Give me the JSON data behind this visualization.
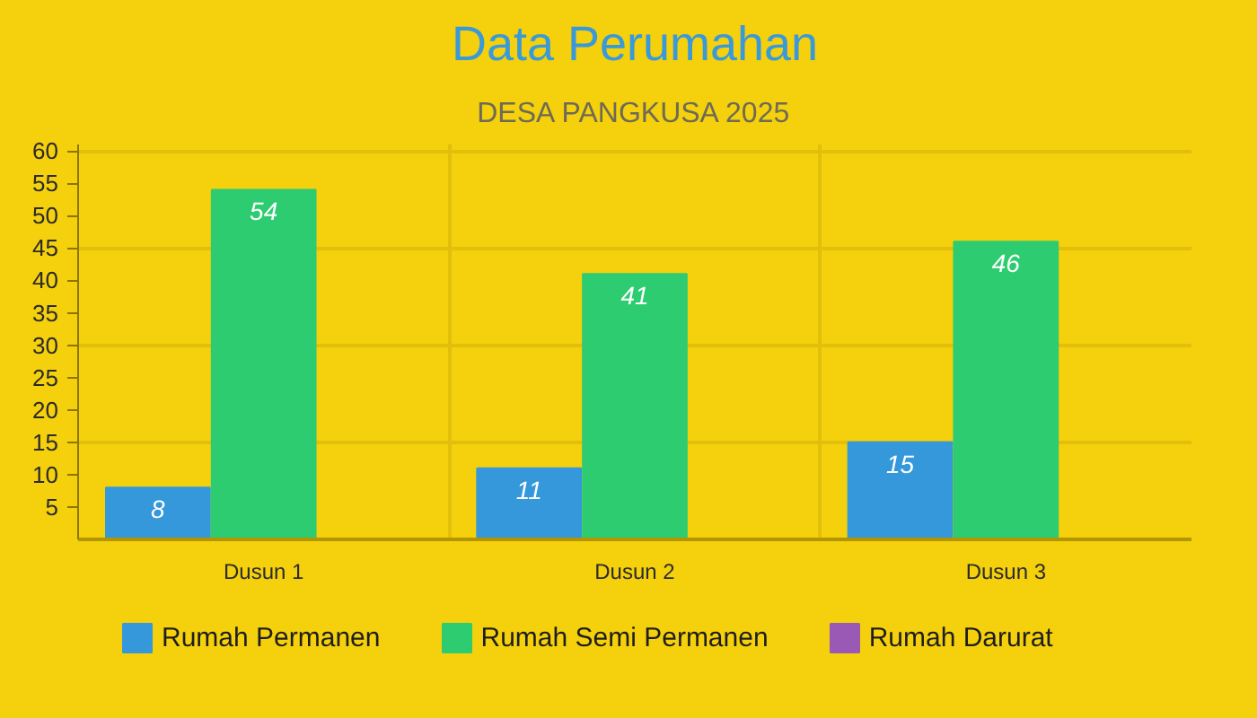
{
  "chart_data": {
    "type": "bar",
    "title": "Data Perumahan",
    "subtitle": "DESA PANGKUSA 2025",
    "categories": [
      "Dusun 1",
      "Dusun 2",
      "Dusun 3"
    ],
    "series": [
      {
        "name": "Rumah Permanen",
        "color": "#3498db",
        "values": [
          8,
          11,
          15
        ]
      },
      {
        "name": "Rumah Semi Permanen",
        "color": "#2ecc71",
        "values": [
          54,
          41,
          46
        ]
      },
      {
        "name": "Rumah Darurat",
        "color": "#9b59b6",
        "values": [
          null,
          null,
          null
        ]
      }
    ],
    "ylim": [
      0,
      61
    ],
    "yticks": [
      5,
      10,
      15,
      20,
      25,
      30,
      35,
      40,
      45,
      50,
      55,
      60
    ],
    "grid": true,
    "legend": "bottom",
    "data_labels": true
  }
}
